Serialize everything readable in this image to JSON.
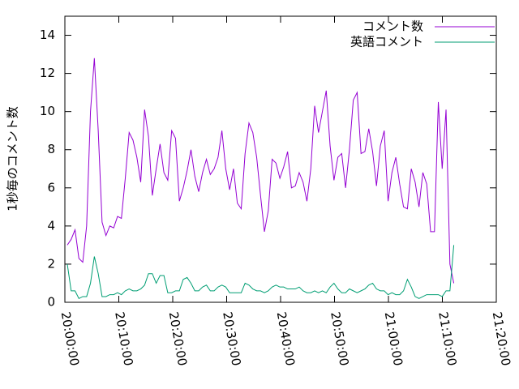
{
  "chart_data": {
    "type": "line",
    "ylabel": "1秒毎のコメント数",
    "x": [
      "20:00:27",
      "20:01:10",
      "20:01:53",
      "20:02:36",
      "20:03:19",
      "20:04:02",
      "20:04:45",
      "20:05:28",
      "20:06:11",
      "20:06:54",
      "20:07:37",
      "20:08:20",
      "20:09:03",
      "20:09:46",
      "20:10:29",
      "20:11:12",
      "20:11:55",
      "20:12:38",
      "20:13:21",
      "20:14:04",
      "20:14:47",
      "20:15:30",
      "20:16:13",
      "20:16:56",
      "20:17:39",
      "20:18:22",
      "20:19:05",
      "20:19:48",
      "20:20:31",
      "20:21:14",
      "20:21:57",
      "20:22:40",
      "20:23:23",
      "20:24:06",
      "20:24:49",
      "20:25:32",
      "20:26:15",
      "20:26:58",
      "20:27:41",
      "20:28:24",
      "20:29:07",
      "20:29:50",
      "20:30:33",
      "20:31:16",
      "20:31:59",
      "20:32:42",
      "20:33:25",
      "20:34:08",
      "20:34:51",
      "20:35:34",
      "20:36:17",
      "20:37:00",
      "20:37:43",
      "20:38:26",
      "20:39:09",
      "20:39:52",
      "20:40:35",
      "20:41:18",
      "20:42:01",
      "20:42:44",
      "20:43:27",
      "20:44:10",
      "20:44:53",
      "20:45:36",
      "20:46:19",
      "20:47:02",
      "20:47:45",
      "20:48:28",
      "20:49:11",
      "20:49:54",
      "20:50:37",
      "20:51:20",
      "20:52:03",
      "20:52:46",
      "20:53:29",
      "20:54:12",
      "20:54:55",
      "20:55:38",
      "20:56:21",
      "20:57:04",
      "20:57:47",
      "20:58:30",
      "20:59:13",
      "20:59:56",
      "21:00:39",
      "21:01:22",
      "21:02:05",
      "21:02:48",
      "21:03:31",
      "21:04:14",
      "21:04:57",
      "21:05:40",
      "21:06:23",
      "21:07:06",
      "21:07:49",
      "21:08:32",
      "21:09:15",
      "21:09:58",
      "21:10:41",
      "21:11:24",
      "21:12:07"
    ],
    "series": [
      {
        "name": "コメント数",
        "color": "#9400d3",
        "values": [
          3.0,
          3.3,
          3.8,
          2.3,
          2.1,
          4.0,
          10,
          12.8,
          9,
          4.2,
          3.5,
          4,
          3.9,
          4.5,
          4.4,
          6.5,
          8.9,
          8.5,
          7.6,
          6.3,
          10.1,
          8.7,
          5.6,
          7,
          8.3,
          6.8,
          6.4,
          9,
          8.6,
          5.3,
          6,
          6.9,
          8,
          6.6,
          5.8,
          6.8,
          7.5,
          6.7,
          7.0,
          7.6,
          9,
          7,
          5.9,
          7,
          5.2,
          4.9,
          7.8,
          9.4,
          8.9,
          7.6,
          5.6,
          3.7,
          4.8,
          7.5,
          7.3,
          6.5,
          7.1,
          7.9,
          6.0,
          6.1,
          6.8,
          6.3,
          5.3,
          7.0,
          10.3,
          8.9,
          10.0,
          11.1,
          8.2,
          6.4,
          7.6,
          7.8,
          6.0,
          8.0,
          10.6,
          11.0,
          7.8,
          7.9,
          9.1,
          7.9,
          6.1,
          8.2,
          9.0,
          5.3,
          6.8,
          7.6,
          6.2,
          5.0,
          4.9,
          7.0,
          6.3,
          5.0,
          6.8,
          6.2,
          3.7,
          3.7,
          10.5,
          7.0,
          10.1,
          2.0,
          1.0
        ]
      },
      {
        "name": "英語コメント",
        "color": "#009e73",
        "values": [
          2.0,
          0.6,
          0.6,
          0.2,
          0.3,
          0.3,
          1.0,
          2.4,
          1.5,
          0.3,
          0.3,
          0.4,
          0.4,
          0.5,
          0.4,
          0.6,
          0.7,
          0.6,
          0.6,
          0.7,
          0.9,
          1.5,
          1.5,
          1.0,
          1.4,
          1.4,
          0.5,
          0.5,
          0.6,
          0.6,
          1.2,
          1.3,
          1.0,
          0.6,
          0.6,
          0.8,
          0.9,
          0.6,
          0.6,
          0.8,
          0.9,
          0.8,
          0.5,
          0.5,
          0.5,
          0.5,
          1.0,
          0.9,
          0.7,
          0.6,
          0.6,
          0.5,
          0.6,
          0.8,
          0.9,
          0.8,
          0.8,
          0.7,
          0.7,
          0.7,
          0.8,
          0.6,
          0.5,
          0.5,
          0.6,
          0.5,
          0.6,
          0.5,
          0.8,
          1.0,
          0.7,
          0.5,
          0.5,
          0.7,
          0.6,
          0.5,
          0.6,
          0.7,
          0.9,
          1.0,
          0.7,
          0.6,
          0.6,
          0.4,
          0.5,
          0.4,
          0.4,
          0.6,
          1.2,
          0.8,
          0.3,
          0.2,
          0.3,
          0.4,
          0.4,
          0.4,
          0.4,
          0.3,
          0.6,
          0.6,
          3.0
        ]
      }
    ],
    "xlim": [
      "20:00:00",
      "21:20:00"
    ],
    "xticks": [
      "20:00:00",
      "20:10:00",
      "20:20:00",
      "20:30:00",
      "20:40:00",
      "20:50:00",
      "21:00:00",
      "21:10:00",
      "21:20:00"
    ],
    "ylim": [
      0,
      15
    ],
    "yticks": [
      0,
      2,
      4,
      6,
      8,
      10,
      12,
      14
    ],
    "legend": "top-right"
  }
}
